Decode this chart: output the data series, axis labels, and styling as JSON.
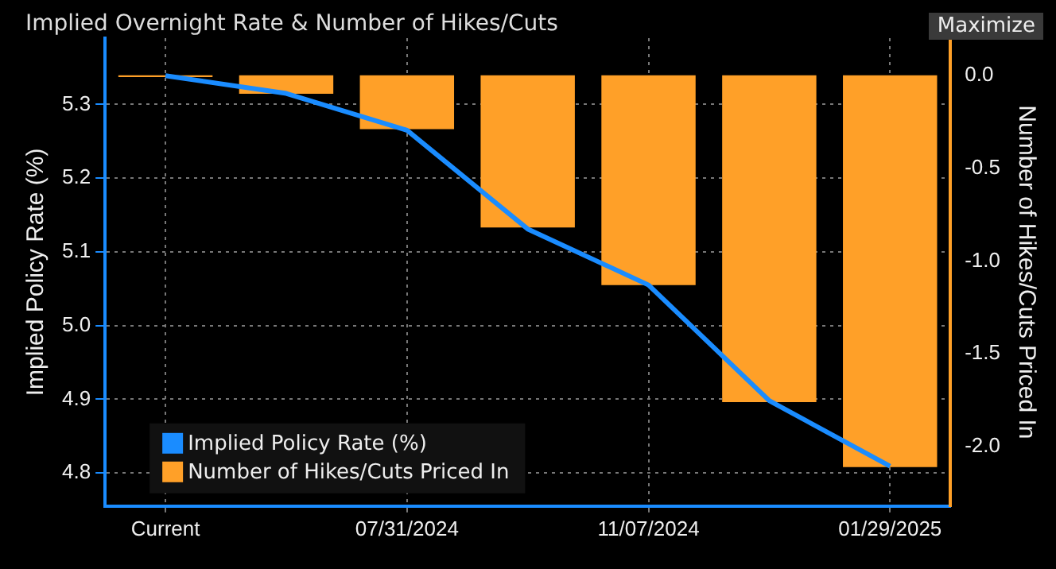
{
  "chart_data": {
    "type": "bar",
    "title": "Implied Overnight Rate & Number of Hikes/Cuts",
    "annotations": [
      "Maximize"
    ],
    "categories": [
      "Current",
      null,
      "07/31/2024",
      null,
      "11/07/2024",
      null,
      "01/29/2025"
    ],
    "series": [
      {
        "name": "Implied Policy Rate (%)",
        "type": "line",
        "axis": "y",
        "color": "#1a8cff",
        "values": [
          5.339,
          5.315,
          5.265,
          5.131,
          5.055,
          4.898,
          4.809
        ]
      },
      {
        "name": "Number of Hikes/Cuts Priced In",
        "axis": "y2",
        "color": "#ffa028",
        "values": [
          -0.01,
          -0.1,
          -0.29,
          -0.82,
          -1.13,
          -1.76,
          -2.11
        ]
      }
    ],
    "ylabel": "Implied Policy Rate (%)",
    "y2label": "Number of Hikes/Cuts Priced In",
    "ylim": [
      4.755,
      5.39
    ],
    "yticks": [
      4.8,
      4.9,
      {
        "value": 5.0,
        "label": "5.0"
      },
      5.1,
      5.2,
      5.3
    ],
    "y2lim": [
      -2.32,
      0.2
    ],
    "y2ticks": [
      {
        "value": -2.0,
        "label": "-2.0"
      },
      -1.5,
      {
        "value": -1.0,
        "label": "-1.0"
      },
      -0.5,
      {
        "value": 0,
        "label": "0.0"
      }
    ],
    "grid": true,
    "legend": "bottom left",
    "marker": "none",
    "line_style": "solid"
  }
}
